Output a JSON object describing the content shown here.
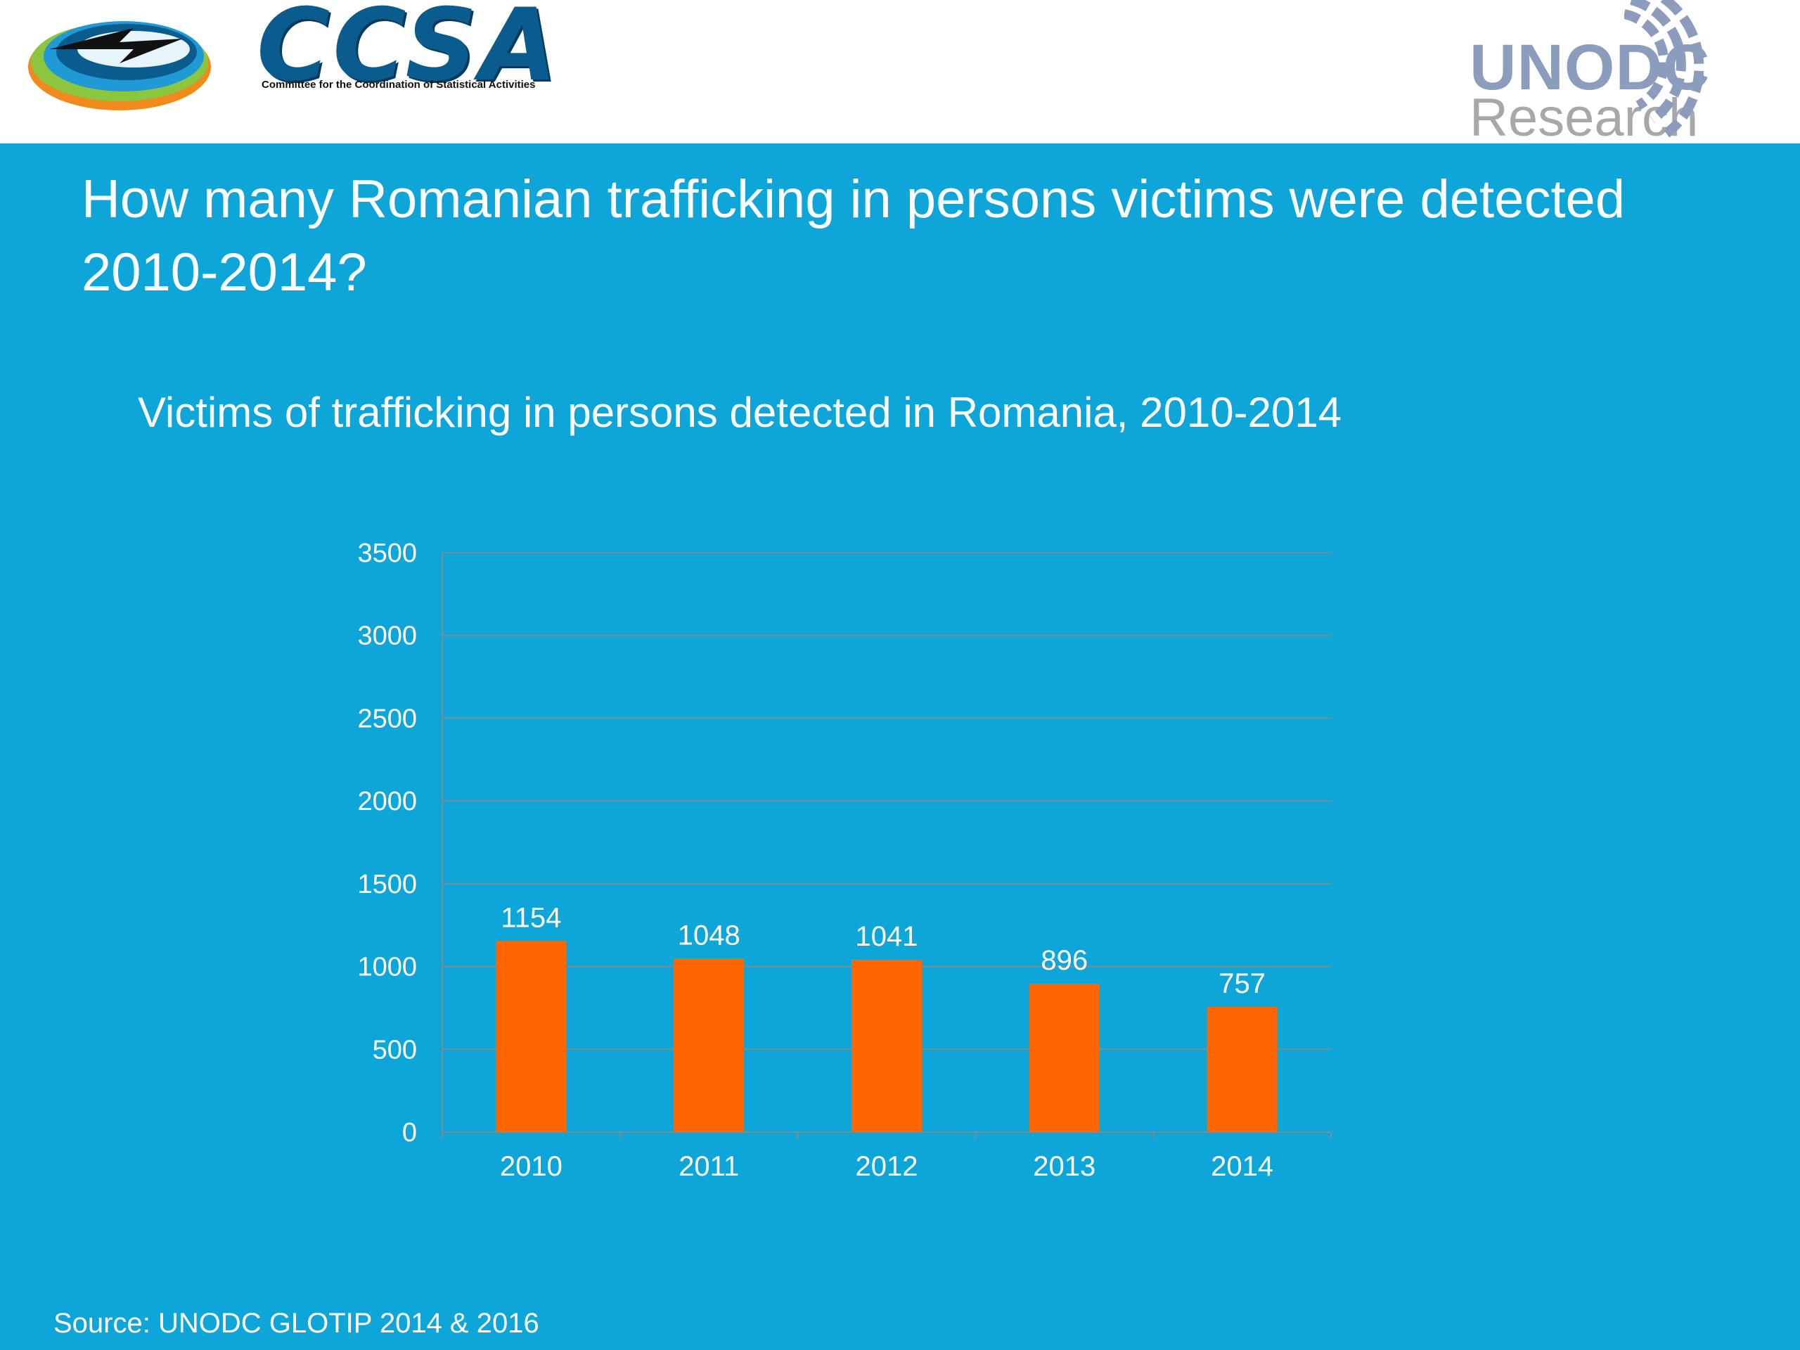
{
  "logos": {
    "ccsa": {
      "word": "CCSA",
      "tagline": "Committee for the Coordination of Statistical Activities"
    },
    "unodc": {
      "word": "UNODC",
      "sub": "Research",
      "color": "#8b9cbc"
    }
  },
  "slide": {
    "title": "How many Romanian trafficking in persons victims were detected 2010-2014?",
    "background_color": "#0ea6d8",
    "source": "Source: UNODC GLOTIP 2014 & 2016"
  },
  "chart_data": {
    "type": "bar",
    "title": "Victims of trafficking in persons detected in Romania, 2010-2014",
    "categories": [
      "2010",
      "2011",
      "2012",
      "2013",
      "2014"
    ],
    "values": [
      1154,
      1048,
      1041,
      896,
      757
    ],
    "data_labels": [
      "1154",
      "1048",
      "1041",
      "896",
      "757"
    ],
    "xlabel": "",
    "ylabel": "",
    "ylim": [
      0,
      3500
    ],
    "y_ticks": [
      "0",
      "500",
      "1000",
      "1500",
      "2000",
      "2500",
      "3000",
      "3500"
    ],
    "grid": true,
    "legend": "none",
    "bar_color": "#ff6600"
  }
}
